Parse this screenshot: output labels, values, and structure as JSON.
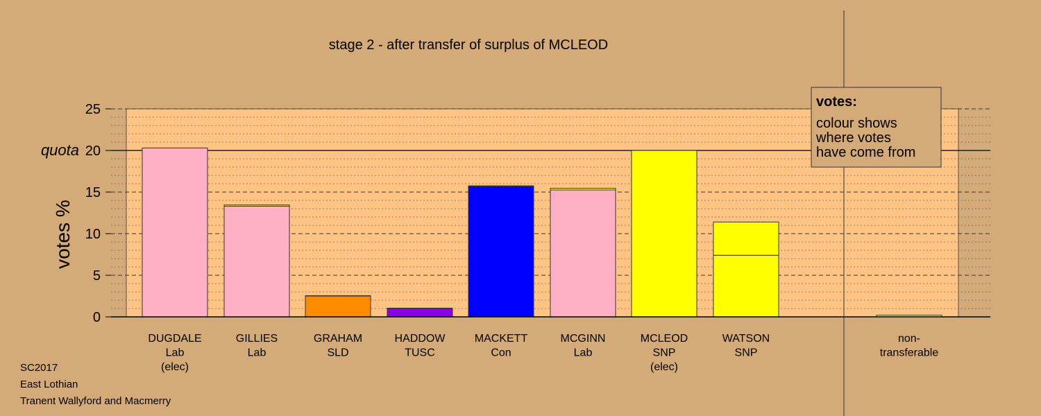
{
  "chart_data": {
    "type": "bar",
    "title": "stage 2 - after transfer of surplus of MCLEOD",
    "ylabel": "votes %",
    "ylim": [
      0,
      25
    ],
    "yticks": [
      0,
      5,
      10,
      15,
      20,
      25
    ],
    "quota": 20,
    "quota_label": "quota",
    "grid": true,
    "legend_placement": "top-right",
    "candidates": [
      {
        "name": "DUGDALE",
        "party": "Lab",
        "note": "(elec)",
        "color": "#FFB0C4",
        "segments": [
          {
            "value": 20.3,
            "color": "#FFB0C4"
          }
        ]
      },
      {
        "name": "GILLIES",
        "party": "Lab",
        "note": "",
        "color": "#FFB0C4",
        "segments": [
          {
            "value": 13.3,
            "color": "#FFB0C4"
          },
          {
            "value": 0.15,
            "color": "#FFFF00"
          }
        ]
      },
      {
        "name": "GRAHAM",
        "party": "SLD",
        "note": "",
        "color": "#FF8C00",
        "segments": [
          {
            "value": 2.5,
            "color": "#FF8C00"
          },
          {
            "value": 0.05,
            "color": "#FFFF00"
          }
        ]
      },
      {
        "name": "HADDOW",
        "party": "TUSC",
        "note": "",
        "color": "#8B00E8",
        "segments": [
          {
            "value": 1.0,
            "color": "#8B00E8"
          },
          {
            "value": 0.05,
            "color": "#FFFF00"
          }
        ]
      },
      {
        "name": "MACKETT",
        "party": "Con",
        "note": "",
        "color": "#0000FF",
        "segments": [
          {
            "value": 15.7,
            "color": "#0000FF"
          },
          {
            "value": 0.05,
            "color": "#FFFF00"
          }
        ]
      },
      {
        "name": "MCGINN",
        "party": "Lab",
        "note": "",
        "color": "#FFB0C4",
        "segments": [
          {
            "value": 15.25,
            "color": "#FFB0C4"
          },
          {
            "value": 0.2,
            "color": "#FFFF00"
          }
        ]
      },
      {
        "name": "MCLEOD",
        "party": "SNP",
        "note": "(elec)",
        "color": "#FFFF00",
        "segments": [
          {
            "value": 20.0,
            "color": "#FFFF00"
          }
        ]
      },
      {
        "name": "WATSON",
        "party": "SNP",
        "note": "",
        "color": "#FFFF00",
        "segments": [
          {
            "value": 7.4,
            "color": "#FFFF00"
          },
          {
            "value": 4.0,
            "color": "#FFFF00"
          }
        ]
      }
    ],
    "nontransferable": {
      "label_line1": "non-",
      "label_line2": "transferable",
      "value": 0.2,
      "color": "#FFFF00"
    },
    "legend": {
      "title": "votes:",
      "lines": [
        "colour shows",
        "where votes",
        "have come from"
      ]
    }
  },
  "footer": {
    "line1": "SC2017",
    "line2": "East Lothian",
    "line3": "Tranent Wallyford and Macmerry"
  },
  "colors": {
    "background": "#D4AA78",
    "plot_panel": "#FFC484",
    "legend_fill": "#D4AA78"
  }
}
